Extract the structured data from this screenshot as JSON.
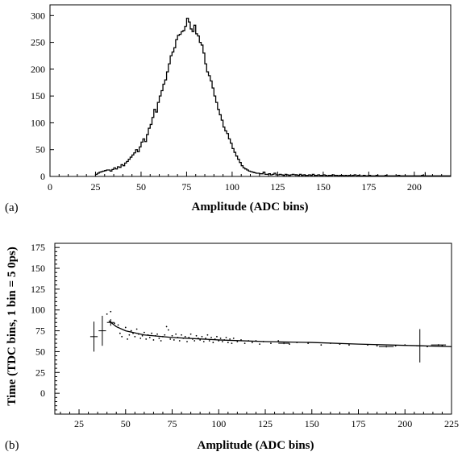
{
  "chart_data": [
    {
      "panel_label": "(a)",
      "type": "histogram",
      "xlabel": "Amplitude (ADC bins)",
      "ylabel": "",
      "xlim": [
        0,
        220
      ],
      "ylim": [
        0,
        320
      ],
      "x_tick_labels": [
        "0",
        "25",
        "50",
        "75",
        "100",
        "125",
        "150",
        "175",
        "200"
      ],
      "x_tick_values": [
        0,
        25,
        50,
        75,
        100,
        125,
        150,
        175,
        200
      ],
      "y_tick_labels": [
        "0",
        "50",
        "100",
        "150",
        "200",
        "250",
        "300"
      ],
      "y_tick_values": [
        0,
        50,
        100,
        150,
        200,
        250,
        300
      ],
      "bin_width": 1,
      "x_start": 25,
      "counts": [
        4,
        6,
        8,
        9,
        10,
        11,
        12,
        12,
        10,
        13,
        16,
        14,
        18,
        17,
        22,
        20,
        25,
        28,
        32,
        36,
        40,
        44,
        50,
        46,
        55,
        64,
        70,
        65,
        78,
        90,
        97,
        110,
        125,
        120,
        138,
        150,
        160,
        172,
        180,
        195,
        210,
        225,
        232,
        240,
        255,
        263,
        265,
        270,
        272,
        280,
        295,
        288,
        275,
        270,
        282,
        266,
        262,
        250,
        245,
        230,
        210,
        195,
        188,
        178,
        165,
        150,
        138,
        125,
        115,
        105,
        92,
        85,
        80,
        70,
        62,
        52,
        45,
        38,
        32,
        26,
        20,
        16,
        14,
        12,
        10,
        9,
        8,
        7,
        6,
        6,
        5,
        5,
        8,
        4,
        4,
        5,
        3,
        4,
        6,
        3,
        3,
        4,
        3,
        2,
        4,
        3,
        2,
        3,
        4,
        3,
        3,
        2,
        4,
        2,
        3,
        2,
        2,
        3,
        2,
        4,
        2,
        2,
        3,
        2,
        2,
        3,
        2,
        1,
        2,
        2,
        3,
        2,
        2,
        1,
        2,
        2,
        1,
        2,
        1,
        2,
        1,
        2,
        3,
        1,
        2,
        1,
        1,
        2,
        1,
        1,
        2,
        1,
        1,
        1,
        2,
        1,
        1,
        1,
        1,
        2,
        1,
        1,
        1,
        1,
        1,
        1,
        2,
        1,
        1,
        1,
        1,
        1,
        1,
        1,
        1,
        1,
        1,
        1,
        1,
        2,
        1,
        1,
        1,
        1,
        1,
        1
      ],
      "spikes": [
        {
          "x": 206,
          "y": 8
        }
      ]
    },
    {
      "panel_label": "(b)",
      "type": "scatter",
      "xlabel": "Amplitude (ADC bins)",
      "ylabel": "Time (TDC bins, 1 bin = 5 0ps)",
      "xlim": [
        12,
        225
      ],
      "ylim": [
        -25,
        180
      ],
      "x_tick_labels": [
        "25",
        "50",
        "75",
        "100",
        "125",
        "150",
        "175",
        "200",
        "225"
      ],
      "x_tick_values": [
        25,
        50,
        75,
        100,
        125,
        150,
        175,
        200,
        225
      ],
      "y_tick_labels": [
        "0",
        "25",
        "50",
        "75",
        "100",
        "125",
        "150",
        "175"
      ],
      "y_tick_values": [
        0,
        25,
        50,
        75,
        100,
        125,
        150,
        175
      ],
      "error_points": [
        {
          "x": 33,
          "y": 68,
          "xerr": 2,
          "yerr": 18
        },
        {
          "x": 37.5,
          "y": 75,
          "xerr": 2,
          "yerr": 18
        },
        {
          "x": 42,
          "y": 85,
          "xerr": 2,
          "yerr": 4
        },
        {
          "x": 208,
          "y": 57,
          "xerr": 2,
          "yerr": 20
        },
        {
          "x": 135,
          "y": 60,
          "xerr": 3,
          "yerr": 1
        },
        {
          "x": 190,
          "y": 56,
          "xerr": 4,
          "yerr": 1
        },
        {
          "x": 218,
          "y": 58,
          "xerr": 4,
          "yerr": 1
        }
      ],
      "fit_curve": [
        [
          41,
          87
        ],
        [
          45,
          80
        ],
        [
          50,
          75
        ],
        [
          60,
          70
        ],
        [
          75,
          67
        ],
        [
          100,
          64
        ],
        [
          125,
          62
        ],
        [
          150,
          61
        ],
        [
          175,
          59
        ],
        [
          200,
          57.5
        ],
        [
          225,
          56
        ]
      ],
      "scatter_points": [
        [
          40,
          95
        ],
        [
          42,
          98
        ],
        [
          44,
          84
        ],
        [
          46,
          82
        ],
        [
          47,
          72
        ],
        [
          48,
          68
        ],
        [
          50,
          79
        ],
        [
          51,
          65
        ],
        [
          52,
          70
        ],
        [
          53,
          75
        ],
        [
          54,
          72
        ],
        [
          55,
          68
        ],
        [
          56,
          77
        ],
        [
          57,
          71
        ],
        [
          58,
          66
        ],
        [
          59,
          69
        ],
        [
          60,
          73
        ],
        [
          61,
          65
        ],
        [
          62,
          70
        ],
        [
          63,
          67
        ],
        [
          64,
          72
        ],
        [
          65,
          64
        ],
        [
          66,
          69
        ],
        [
          67,
          71
        ],
        [
          68,
          66
        ],
        [
          69,
          63
        ],
        [
          70,
          68
        ],
        [
          71,
          70
        ],
        [
          72,
          80
        ],
        [
          73,
          76
        ],
        [
          74,
          65
        ],
        [
          75,
          69
        ],
        [
          76,
          64
        ],
        [
          77,
          71
        ],
        [
          78,
          67
        ],
        [
          79,
          63
        ],
        [
          80,
          70
        ],
        [
          81,
          66
        ],
        [
          82,
          68
        ],
        [
          83,
          62
        ],
        [
          84,
          67
        ],
        [
          85,
          71
        ],
        [
          86,
          65
        ],
        [
          87,
          63
        ],
        [
          88,
          69
        ],
        [
          89,
          66
        ],
        [
          90,
          64
        ],
        [
          91,
          68
        ],
        [
          92,
          62
        ],
        [
          93,
          66
        ],
        [
          94,
          70
        ],
        [
          95,
          63
        ],
        [
          96,
          67
        ],
        [
          97,
          61
        ],
        [
          98,
          65
        ],
        [
          99,
          68
        ],
        [
          100,
          63
        ],
        [
          101,
          66
        ],
        [
          102,
          62
        ],
        [
          103,
          64
        ],
        [
          104,
          67
        ],
        [
          105,
          61
        ],
        [
          106,
          65
        ],
        [
          107,
          60
        ],
        [
          108,
          66
        ],
        [
          110,
          62
        ],
        [
          112,
          64
        ],
        [
          114,
          60
        ],
        [
          116,
          63
        ],
        [
          118,
          61
        ],
        [
          120,
          63
        ],
        [
          122,
          59
        ],
        [
          124,
          62
        ],
        [
          128,
          60
        ],
        [
          132,
          63
        ],
        [
          138,
          59
        ],
        [
          142,
          61
        ],
        [
          148,
          60
        ],
        [
          155,
          58
        ],
        [
          160,
          60
        ],
        [
          165,
          59
        ],
        [
          170,
          58
        ],
        [
          180,
          58
        ],
        [
          185,
          57
        ],
        [
          195,
          57
        ],
        [
          200,
          58
        ],
        [
          212,
          56
        ],
        [
          220,
          57
        ]
      ]
    }
  ]
}
